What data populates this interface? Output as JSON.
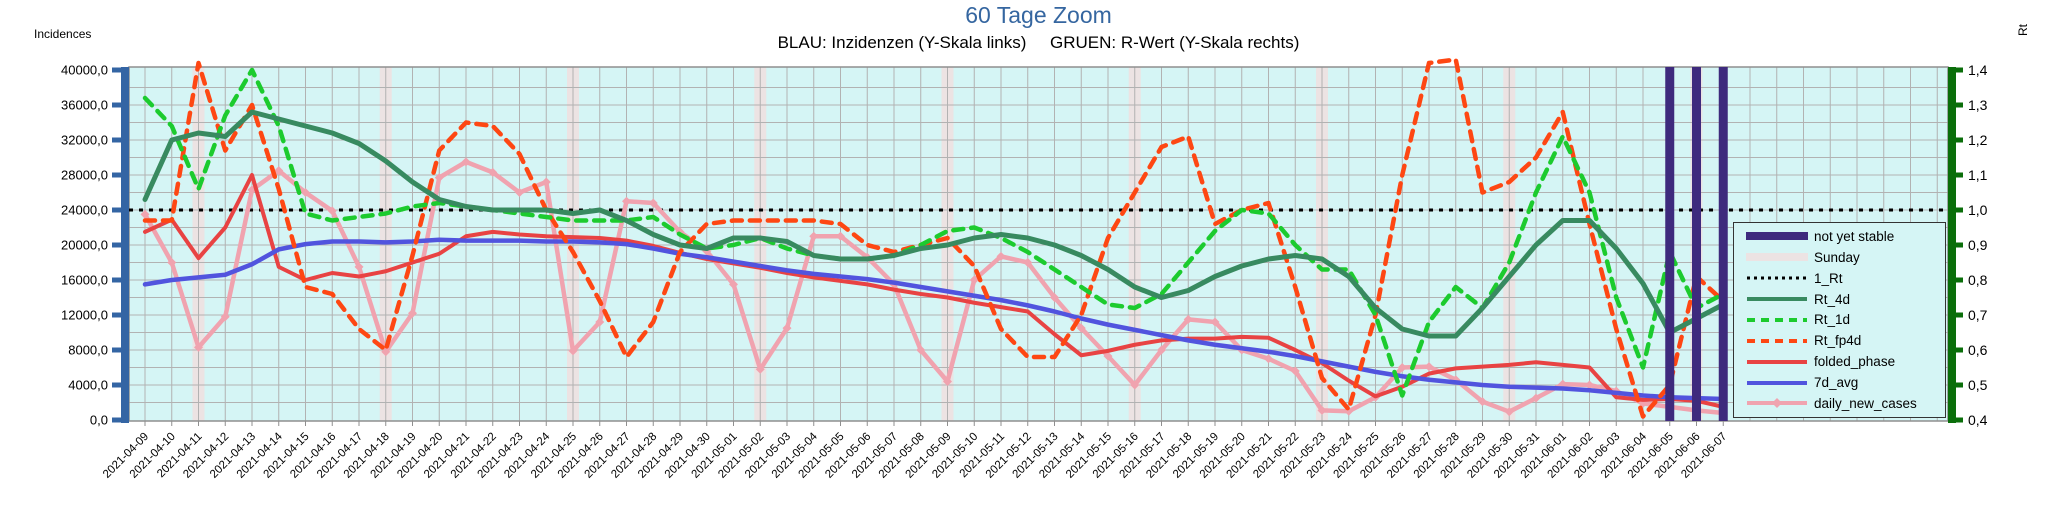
{
  "title": "60 Tage Zoom",
  "subtitle": "BLAU: Inzidenzen (Y-Skala links)     GRUEN: R-Wert (Y-Skala rechts)",
  "left_axis": {
    "label": "Incidences",
    "tick_labels": [
      "0,0",
      "4000,0",
      "8000,0",
      "12000,0",
      "16000,0",
      "20000,0",
      "24000,0",
      "28000,0",
      "32000,0",
      "36000,0",
      "40000,0"
    ],
    "color": "#3465a4"
  },
  "right_axis": {
    "label": "Rt",
    "tick_labels": [
      "0,4",
      "0,5",
      "0,6",
      "0,7",
      "0,8",
      "0,9",
      "1,0",
      "1,1",
      "1,2",
      "1,3",
      "1,4"
    ],
    "color": "#0a6e0a"
  },
  "legend": {
    "items": [
      {
        "label": "not yet stable",
        "swatch": "bar",
        "color": "#3e2a7d"
      },
      {
        "label": "Sunday",
        "swatch": "bar",
        "color": "#ece3e3"
      },
      {
        "label": "1_Rt",
        "swatch": "dotted",
        "color": "#000000"
      },
      {
        "label": "Rt_4d",
        "swatch": "solid",
        "color": "#388a60"
      },
      {
        "label": "Rt_1d",
        "swatch": "dashed",
        "color": "#1ccb2e"
      },
      {
        "label": "Rt_fp4d",
        "swatch": "dashed",
        "color": "#fe4713"
      },
      {
        "label": "folded_phase",
        "swatch": "solid",
        "color": "#e84343"
      },
      {
        "label": "7d_avg",
        "swatch": "solid",
        "color": "#5154de"
      },
      {
        "label": "daily_new_cases",
        "swatch": "solid-diamond",
        "color": "#f0a3af"
      }
    ]
  },
  "colors": {
    "plot_background": "#d5f5f5",
    "grid": "#b2b2b2",
    "border": "#8f8f8f",
    "sunday_band": "#ece3e3",
    "not_yet_stable_bar": "#3e2a7d",
    "reference_line": "#000000",
    "title": "#3566a0"
  },
  "chart_data": {
    "type": "line",
    "title": "60 Tage Zoom",
    "xlabel": "",
    "ylabel_left": "Incidences",
    "ylabel_right": "Rt",
    "left_ylim": [
      0,
      40000
    ],
    "right_ylim": [
      0.4,
      1.4
    ],
    "grid": true,
    "legend_position": "right",
    "reference_line": {
      "name": "1_Rt",
      "axis": "right",
      "value": 1.0
    },
    "sundays": [
      "2021-04-11",
      "2021-04-18",
      "2021-04-25",
      "2021-05-02",
      "2021-05-09",
      "2021-05-16",
      "2021-05-23",
      "2021-05-30",
      "2021-06-06"
    ],
    "not_yet_stable": [
      "2021-06-05",
      "2021-06-06",
      "2021-06-07"
    ],
    "x": [
      "2021-04-09",
      "2021-04-10",
      "2021-04-11",
      "2021-04-12",
      "2021-04-13",
      "2021-04-14",
      "2021-04-15",
      "2021-04-16",
      "2021-04-17",
      "2021-04-18",
      "2021-04-19",
      "2021-04-20",
      "2021-04-21",
      "2021-04-22",
      "2021-04-23",
      "2021-04-24",
      "2021-04-25",
      "2021-04-26",
      "2021-04-27",
      "2021-04-28",
      "2021-04-29",
      "2021-04-30",
      "2021-05-01",
      "2021-05-02",
      "2021-05-03",
      "2021-05-04",
      "2021-05-05",
      "2021-05-06",
      "2021-05-07",
      "2021-05-08",
      "2021-05-09",
      "2021-05-10",
      "2021-05-11",
      "2021-05-12",
      "2021-05-13",
      "2021-05-14",
      "2021-05-15",
      "2021-05-16",
      "2021-05-17",
      "2021-05-18",
      "2021-05-19",
      "2021-05-20",
      "2021-05-21",
      "2021-05-22",
      "2021-05-23",
      "2021-05-24",
      "2021-05-25",
      "2021-05-26",
      "2021-05-27",
      "2021-05-28",
      "2021-05-29",
      "2021-05-30",
      "2021-05-31",
      "2021-06-01",
      "2021-06-02",
      "2021-06-03",
      "2021-06-04",
      "2021-06-05",
      "2021-06-06",
      "2021-06-07"
    ],
    "series": [
      {
        "name": "daily_new_cases",
        "axis": "left",
        "style": "solid",
        "marker": "diamond",
        "width": 4.5,
        "color": "#f0a3af",
        "values": [
          23500,
          18000,
          8300,
          11800,
          26300,
          28500,
          26000,
          23900,
          17500,
          7800,
          12200,
          27700,
          29500,
          28300,
          26000,
          27200,
          7900,
          11200,
          25000,
          24800,
          21500,
          19300,
          15500,
          5800,
          10500,
          21000,
          21000,
          18600,
          15500,
          8000,
          4400,
          16000,
          18700,
          18000,
          14000,
          10500,
          7300,
          4000,
          8000,
          11500,
          11200,
          8000,
          7000,
          5600,
          1100,
          1000,
          2600,
          6000,
          6100,
          4600,
          2100,
          950,
          2500,
          4100,
          4000,
          3300,
          1900,
          1500,
          1100,
          800
        ]
      },
      {
        "name": "folded_phase",
        "axis": "left",
        "style": "solid",
        "width": 4,
        "color": "#e84343",
        "values": [
          21500,
          22900,
          18500,
          22000,
          28000,
          17500,
          16000,
          16800,
          16400,
          17000,
          18000,
          19000,
          21000,
          21500,
          21200,
          21000,
          20900,
          20800,
          20500,
          19900,
          19100,
          18400,
          17900,
          17400,
          16800,
          16300,
          15900,
          15500,
          14900,
          14400,
          14000,
          13400,
          12900,
          12400,
          9800,
          7400,
          7900,
          8600,
          9100,
          9300,
          9300,
          9500,
          9400,
          8000,
          6500,
          4500,
          2700,
          3800,
          5300,
          5900,
          6100,
          6300,
          6600,
          6300,
          6000,
          2600,
          2300,
          2400,
          2200,
          1500
        ]
      },
      {
        "name": "7d_avg",
        "axis": "left",
        "style": "solid",
        "width": 4.5,
        "color": "#5154de",
        "values": [
          15500,
          16000,
          16300,
          16600,
          17800,
          19500,
          20100,
          20400,
          20400,
          20300,
          20400,
          20600,
          20500,
          20500,
          20500,
          20400,
          20400,
          20300,
          20100,
          19600,
          19000,
          18600,
          18100,
          17600,
          17100,
          16700,
          16400,
          16100,
          15700,
          15200,
          14700,
          14200,
          13700,
          13100,
          12400,
          11600,
          10900,
          10300,
          9700,
          9100,
          8600,
          8200,
          7800,
          7300,
          6700,
          6100,
          5500,
          5000,
          4600,
          4300,
          4000,
          3800,
          3700,
          3600,
          3400,
          3100,
          2800,
          2600,
          2500,
          2400
        ]
      },
      {
        "name": "Rt_fp4d",
        "axis": "right",
        "style": "dashed",
        "width": 4.5,
        "color": "#fe4713",
        "values": [
          0.97,
          0.97,
          1.42,
          1.17,
          1.3,
          1.06,
          0.78,
          0.76,
          0.66,
          0.6,
          0.87,
          1.17,
          1.25,
          1.24,
          1.16,
          1.0,
          0.88,
          0.74,
          0.58,
          0.68,
          0.88,
          0.96,
          0.97,
          0.97,
          0.97,
          0.97,
          0.96,
          0.9,
          0.88,
          0.9,
          0.92,
          0.84,
          0.66,
          0.58,
          0.58,
          0.7,
          0.92,
          1.05,
          1.18,
          1.21,
          0.96,
          1.0,
          1.02,
          0.78,
          0.52,
          0.43,
          0.7,
          1.1,
          1.42,
          1.43,
          1.05,
          1.08,
          1.15,
          1.28,
          0.96,
          0.66,
          0.41,
          0.5,
          0.81,
          0.74
        ]
      },
      {
        "name": "Rt_1d",
        "axis": "right",
        "style": "dashed",
        "width": 4.5,
        "color": "#1ccb2e",
        "values": [
          1.32,
          1.24,
          1.06,
          1.27,
          1.4,
          1.24,
          0.99,
          0.97,
          0.98,
          0.99,
          1.01,
          1.02,
          1.01,
          1.0,
          0.99,
          0.98,
          0.97,
          0.97,
          0.97,
          0.98,
          0.93,
          0.89,
          0.9,
          0.92,
          0.89,
          0.87,
          0.86,
          0.86,
          0.87,
          0.9,
          0.94,
          0.95,
          0.92,
          0.88,
          0.83,
          0.78,
          0.73,
          0.72,
          0.76,
          0.85,
          0.94,
          1.0,
          0.99,
          0.9,
          0.83,
          0.83,
          0.7,
          0.47,
          0.68,
          0.78,
          0.72,
          0.85,
          1.05,
          1.21,
          1.05,
          0.75,
          0.55,
          0.88,
          0.72,
          0.76
        ]
      },
      {
        "name": "Rt_4d",
        "axis": "right",
        "style": "solid",
        "width": 5,
        "color": "#388a60",
        "values": [
          1.03,
          1.2,
          1.22,
          1.21,
          1.28,
          1.26,
          1.24,
          1.22,
          1.19,
          1.14,
          1.08,
          1.03,
          1.01,
          1.0,
          1.0,
          1.0,
          0.99,
          1.0,
          0.97,
          0.93,
          0.9,
          0.89,
          0.92,
          0.92,
          0.91,
          0.87,
          0.86,
          0.86,
          0.87,
          0.89,
          0.9,
          0.92,
          0.93,
          0.92,
          0.9,
          0.87,
          0.83,
          0.78,
          0.75,
          0.77,
          0.81,
          0.84,
          0.86,
          0.87,
          0.86,
          0.81,
          0.72,
          0.66,
          0.64,
          0.64,
          0.72,
          0.81,
          0.9,
          0.97,
          0.97,
          0.89,
          0.79,
          0.65,
          0.69,
          0.73
        ]
      }
    ]
  }
}
